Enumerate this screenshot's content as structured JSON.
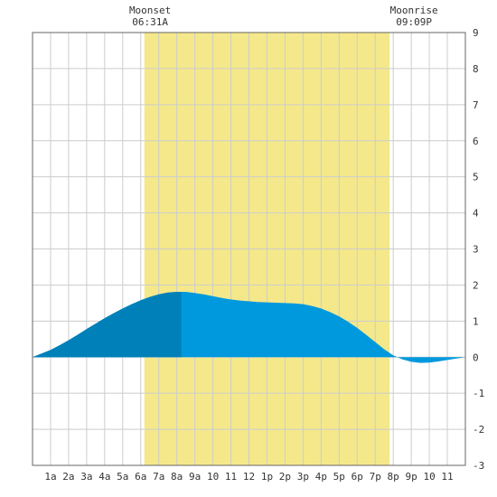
{
  "chart_data": {
    "type": "area",
    "title": "",
    "xlabel": "",
    "ylabel": "",
    "x_tick_labels": [
      "1a",
      "2a",
      "3a",
      "4a",
      "5a",
      "6a",
      "7a",
      "8a",
      "9a",
      "10",
      "11",
      "12",
      "1p",
      "2p",
      "3p",
      "4p",
      "5p",
      "6p",
      "7p",
      "8p",
      "9p",
      "10",
      "11"
    ],
    "xlim": [
      0,
      24
    ],
    "ylim": [
      -3,
      9
    ],
    "y_ticks": [
      -3,
      -2,
      -1,
      0,
      1,
      2,
      3,
      4,
      5,
      6,
      7,
      8,
      9
    ],
    "grid": true,
    "daylight": {
      "start": 6.2,
      "end": 19.8
    },
    "annotations": [
      {
        "label": "Moonset",
        "time": "06:31A",
        "x": 6.52
      },
      {
        "label": "Moonrise",
        "time": "09:09P",
        "x": 21.15
      }
    ],
    "shading_split": {
      "x": 8.25,
      "before_color": "#0080b8",
      "after_color": "#0099dd"
    },
    "fill_color": "#0099dd",
    "daylight_color": "#f4e88a",
    "series": [
      {
        "x": [
          0,
          0.5,
          1,
          1.5,
          2,
          2.5,
          3,
          3.5,
          4,
          4.5,
          5,
          5.5,
          6,
          6.5,
          7,
          7.5,
          8,
          8.5,
          9,
          9.5,
          10,
          10.5,
          11,
          11.5,
          12,
          12.5,
          13,
          13.5,
          14,
          14.5,
          15,
          15.5,
          16,
          16.5,
          17,
          17.5,
          18,
          18.5,
          19,
          19.5,
          20,
          20.5,
          21,
          21.5,
          22,
          22.5,
          23,
          23.5,
          24
        ],
        "values": [
          0.0,
          0.1,
          0.2,
          0.33,
          0.47,
          0.62,
          0.78,
          0.93,
          1.08,
          1.22,
          1.35,
          1.47,
          1.58,
          1.67,
          1.74,
          1.79,
          1.81,
          1.81,
          1.78,
          1.74,
          1.69,
          1.64,
          1.6,
          1.57,
          1.55,
          1.53,
          1.52,
          1.51,
          1.5,
          1.49,
          1.47,
          1.42,
          1.35,
          1.25,
          1.13,
          0.98,
          0.81,
          0.62,
          0.42,
          0.22,
          0.05,
          -0.06,
          -0.13,
          -0.16,
          -0.15,
          -0.12,
          -0.08,
          -0.04,
          0.0
        ]
      }
    ]
  }
}
